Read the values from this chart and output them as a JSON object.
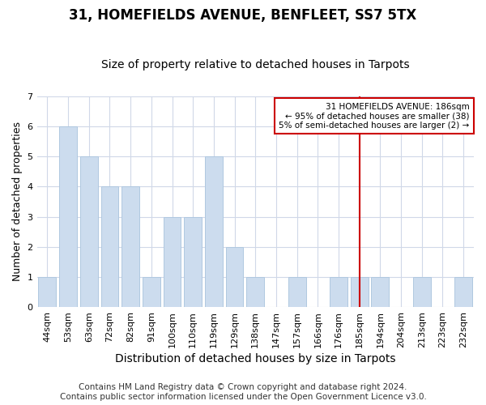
{
  "title": "31, HOMEFIELDS AVENUE, BENFLEET, SS7 5TX",
  "subtitle": "Size of property relative to detached houses in Tarpots",
  "xlabel": "Distribution of detached houses by size in Tarpots",
  "ylabel": "Number of detached properties",
  "categories": [
    "44sqm",
    "53sqm",
    "63sqm",
    "72sqm",
    "82sqm",
    "91sqm",
    "100sqm",
    "110sqm",
    "119sqm",
    "129sqm",
    "138sqm",
    "147sqm",
    "157sqm",
    "166sqm",
    "176sqm",
    "185sqm",
    "194sqm",
    "204sqm",
    "213sqm",
    "223sqm",
    "232sqm"
  ],
  "values": [
    1,
    6,
    5,
    4,
    4,
    1,
    3,
    3,
    5,
    2,
    1,
    0,
    1,
    0,
    1,
    1,
    1,
    0,
    1,
    0,
    1
  ],
  "bar_color": "#ccdcee",
  "bar_edge_color": "#b0c8e0",
  "vline_x_index": 15,
  "vline_color": "#cc0000",
  "ylim": [
    0,
    7
  ],
  "yticks": [
    0,
    1,
    2,
    3,
    4,
    5,
    6,
    7
  ],
  "annotation_line1": "31 HOMEFIELDS AVENUE: 186sqm",
  "annotation_line2": "← 95% of detached houses are smaller (38)",
  "annotation_line3": "5% of semi-detached houses are larger (2) →",
  "annotation_box_color": "#ffffff",
  "annotation_box_edge_color": "#cc0000",
  "footer_line1": "Contains HM Land Registry data © Crown copyright and database right 2024.",
  "footer_line2": "Contains public sector information licensed under the Open Government Licence v3.0.",
  "background_color": "#ffffff",
  "plot_background_color": "#ffffff",
  "grid_color": "#d0d8e8",
  "title_fontsize": 12,
  "subtitle_fontsize": 10,
  "tick_fontsize": 8,
  "ylabel_fontsize": 9,
  "xlabel_fontsize": 10,
  "footer_fontsize": 7.5
}
